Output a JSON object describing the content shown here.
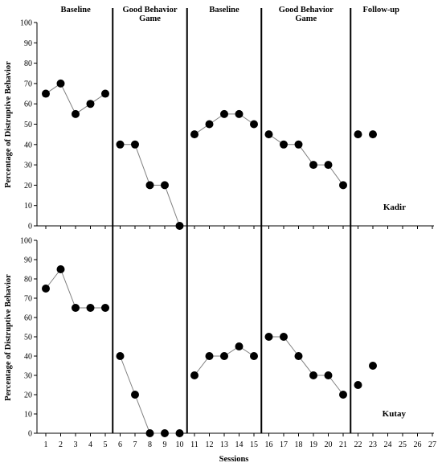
{
  "chart_data": {
    "type": "line",
    "xlabel": "Sessions",
    "ylabel": "Percentage of Distruptive Behavior",
    "x_ticks": [
      1,
      2,
      3,
      4,
      5,
      6,
      7,
      8,
      9,
      10,
      11,
      12,
      13,
      14,
      15,
      16,
      17,
      18,
      19,
      20,
      21,
      22,
      23,
      24,
      25,
      26,
      27
    ],
    "y_ticks": [
      0,
      10,
      20,
      30,
      40,
      50,
      60,
      70,
      80,
      90,
      100
    ],
    "xlim": [
      0.5,
      27.5
    ],
    "ylim": [
      0,
      100
    ],
    "grid": false,
    "phase_labels": [
      [
        "Baseline"
      ],
      [
        "Good Behavior",
        "Game"
      ],
      [
        "Baseline"
      ],
      [
        "Good Behavior",
        "Game"
      ],
      [
        "Follow-up"
      ]
    ],
    "phase_change_after_session": [
      5.5,
      10.5,
      15.5,
      21.5
    ],
    "panels": [
      {
        "name": "Kadir",
        "segments": [
          {
            "x": [
              1,
              2,
              3,
              4,
              5
            ],
            "y": [
              65,
              70,
              55,
              60,
              65
            ]
          },
          {
            "x": [
              6,
              7,
              8,
              9,
              10
            ],
            "y": [
              40,
              40,
              20,
              20,
              0
            ]
          },
          {
            "x": [
              11,
              12,
              13,
              14,
              15
            ],
            "y": [
              45,
              50,
              55,
              55,
              50
            ]
          },
          {
            "x": [
              16,
              17,
              18,
              19,
              20,
              21
            ],
            "y": [
              45,
              40,
              40,
              30,
              30,
              20
            ]
          },
          {
            "x": [
              22
            ],
            "y": [
              45
            ]
          },
          {
            "x": [
              23
            ],
            "y": [
              45
            ]
          }
        ]
      },
      {
        "name": "Kutay",
        "segments": [
          {
            "x": [
              1,
              2,
              3,
              4,
              5
            ],
            "y": [
              75,
              85,
              65,
              65,
              65
            ]
          },
          {
            "x": [
              6,
              7,
              8,
              9,
              10
            ],
            "y": [
              40,
              20,
              0,
              0,
              0
            ]
          },
          {
            "x": [
              11,
              12,
              13,
              14,
              15
            ],
            "y": [
              30,
              40,
              40,
              45,
              40
            ]
          },
          {
            "x": [
              16,
              17,
              18,
              19,
              20,
              21
            ],
            "y": [
              50,
              50,
              40,
              30,
              30,
              20
            ]
          },
          {
            "x": [
              22
            ],
            "y": [
              25
            ]
          },
          {
            "x": [
              23
            ],
            "y": [
              35
            ]
          }
        ]
      }
    ]
  }
}
